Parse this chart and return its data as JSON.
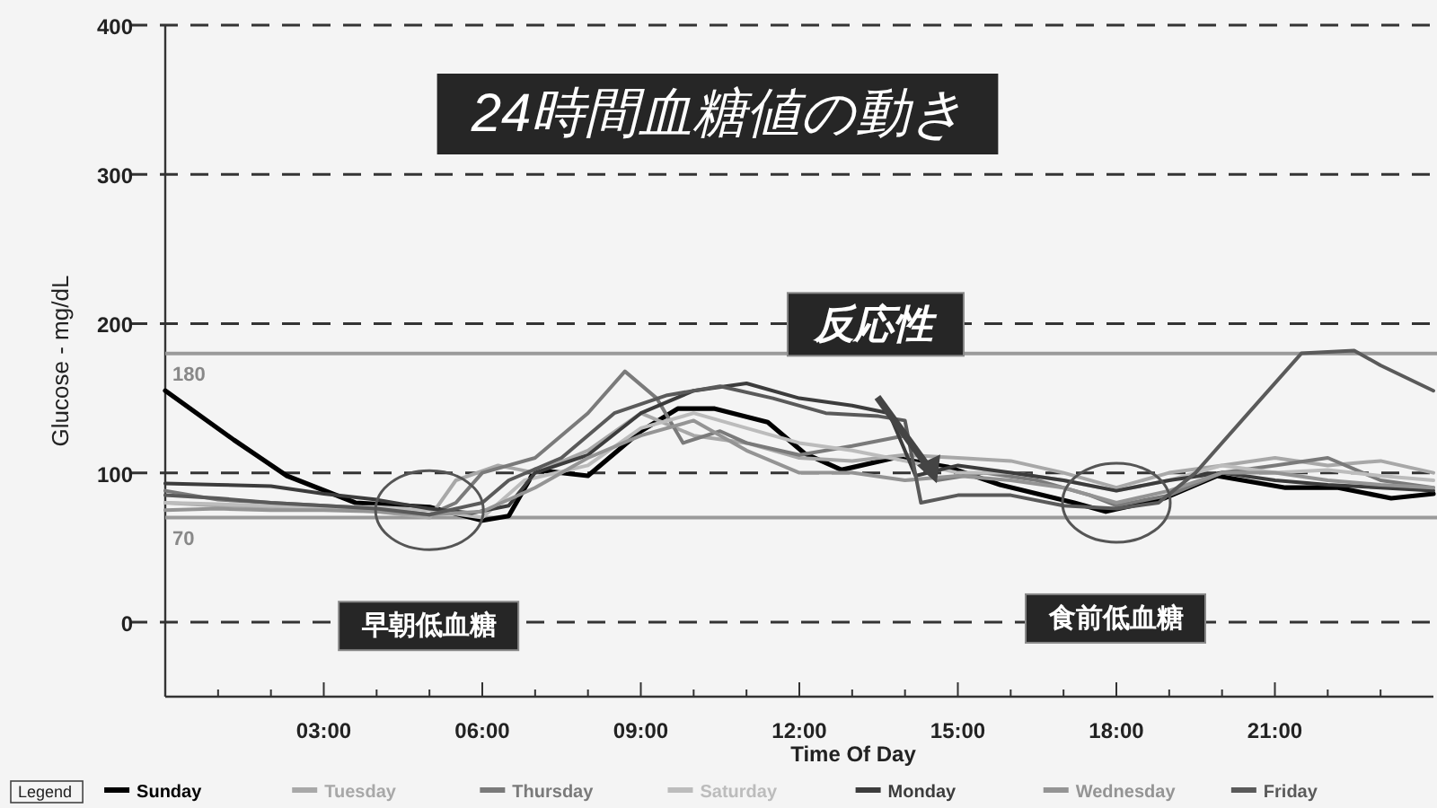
{
  "chart_data": {
    "type": "line",
    "title": "24時間血糖値の動き",
    "xlabel": "Time Of Day",
    "ylabel": "Glucose - mg/dL",
    "legend_title": "Legend",
    "legend": "bottom",
    "grid": "y",
    "marker": "none",
    "line_style": "solid",
    "xlim": [
      0,
      24
    ],
    "ylim": [
      -50,
      400
    ],
    "yticks": [
      0,
      100,
      200,
      300,
      400
    ],
    "xticks": [
      {
        "value": 1,
        "label": null
      },
      {
        "value": 2,
        "label": null
      },
      {
        "value": 3,
        "label": "03:00"
      },
      {
        "value": 4,
        "label": null
      },
      {
        "value": 5,
        "label": null
      },
      {
        "value": 6,
        "label": "06:00"
      },
      {
        "value": 7,
        "label": null
      },
      {
        "value": 8,
        "label": null
      },
      {
        "value": 9,
        "label": "09:00"
      },
      {
        "value": 10,
        "label": null
      },
      {
        "value": 11,
        "label": null
      },
      {
        "value": 12,
        "label": "12:00"
      },
      {
        "value": 13,
        "label": null
      },
      {
        "value": 14,
        "label": null
      },
      {
        "value": 15,
        "label": "15:00"
      },
      {
        "value": 16,
        "label": null
      },
      {
        "value": 17,
        "label": null
      },
      {
        "value": 18,
        "label": "18:00"
      },
      {
        "value": 19,
        "label": null
      },
      {
        "value": 20,
        "label": null
      },
      {
        "value": 21,
        "label": "21:00"
      },
      {
        "value": 22,
        "label": null
      },
      {
        "value": 23,
        "label": null
      }
    ],
    "ref_lines": [
      {
        "axis": "y",
        "value": 180,
        "label": "180",
        "color": "#9a9a9a"
      },
      {
        "axis": "y",
        "value": 70,
        "label": "70",
        "color": "#9a9a9a"
      }
    ],
    "annotations": [
      "早朝低血糖",
      "反応性",
      "食前低血糖"
    ],
    "series": [
      {
        "name": "Sunday",
        "color": "#000000",
        "x": [
          0,
          1.3,
          2.3,
          3.6,
          5,
          6,
          6.5,
          7,
          8,
          9,
          9.7,
          10.4,
          11.4,
          12.1,
          12.8,
          13.8,
          14.8,
          15.8,
          17.2,
          17.8,
          18.9,
          19.9,
          21.2,
          22.2,
          23.2,
          24
        ],
        "values": [
          155,
          122,
          98,
          80,
          77,
          68,
          71,
          102,
          98,
          128,
          143,
          143,
          134,
          113,
          102,
          110,
          104,
          92,
          80,
          74,
          83,
          98,
          90,
          90,
          83,
          86
        ]
      },
      {
        "name": "Tuesday",
        "color": "#a8a8a8",
        "x": [
          0,
          1,
          2,
          3,
          4,
          5,
          5.5,
          6.3,
          7,
          8,
          9,
          10,
          11,
          12,
          13,
          14,
          15,
          16,
          17,
          18,
          19,
          20,
          21,
          22,
          23,
          24
        ],
        "values": [
          80,
          78,
          77,
          76,
          74,
          70,
          95,
          105,
          100,
          115,
          140,
          125,
          120,
          110,
          108,
          112,
          110,
          108,
          100,
          90,
          100,
          105,
          110,
          105,
          108,
          100
        ]
      },
      {
        "name": "Thursday",
        "color": "#7a7a7a",
        "x": [
          0,
          1,
          2,
          3,
          4,
          5,
          5.5,
          6,
          7,
          8,
          8.7,
          9.3,
          9.8,
          10.5,
          11,
          12,
          13,
          14,
          14.6,
          15.5,
          16.5,
          17.5,
          18,
          19,
          20,
          21,
          22,
          23,
          24
        ],
        "values": [
          88,
          82,
          80,
          78,
          76,
          72,
          80,
          100,
          110,
          140,
          168,
          150,
          120,
          128,
          120,
          112,
          118,
          125,
          95,
          100,
          95,
          85,
          78,
          85,
          100,
          105,
          110,
          95,
          90
        ]
      },
      {
        "name": "Saturday",
        "color": "#bcbcbc",
        "x": [
          0,
          1,
          2,
          3,
          4,
          5,
          6,
          6.8,
          8,
          9,
          10,
          11,
          12,
          13,
          14,
          15,
          16,
          17,
          18,
          19,
          20,
          21,
          22,
          23,
          24
        ],
        "values": [
          80,
          79,
          78,
          77,
          77,
          75,
          70,
          95,
          105,
          130,
          140,
          130,
          120,
          115,
          108,
          100,
          100,
          95,
          88,
          95,
          105,
          100,
          102,
          98,
          95
        ]
      },
      {
        "name": "Monday",
        "color": "#3c3c3c",
        "x": [
          0,
          1,
          2,
          3,
          4,
          5,
          5.8,
          6.5,
          7,
          8,
          9,
          10,
          11,
          12,
          13,
          13.7,
          14.2,
          15,
          16,
          17,
          18,
          19,
          20,
          21,
          22,
          23,
          24
        ],
        "values": [
          93,
          92,
          91,
          86,
          82,
          76,
          73,
          78,
          100,
          112,
          140,
          155,
          160,
          150,
          145,
          140,
          98,
          105,
          100,
          95,
          88,
          95,
          100,
          95,
          92,
          90,
          88
        ]
      },
      {
        "name": "Wednesday",
        "color": "#949494",
        "x": [
          0,
          1,
          2,
          3,
          4,
          5,
          6,
          7,
          8,
          9,
          10,
          11,
          12,
          13,
          14,
          15,
          16,
          17,
          18,
          19,
          20,
          21,
          22,
          23,
          24
        ],
        "values": [
          75,
          76,
          75,
          75,
          74,
          72,
          74,
          90,
          110,
          125,
          135,
          115,
          100,
          100,
          95,
          98,
          95,
          90,
          80,
          88,
          100,
          100,
          95,
          92,
          90
        ]
      },
      {
        "name": "Friday",
        "color": "#5a5a5a",
        "x": [
          0,
          1,
          2,
          3,
          4,
          5,
          6,
          6.5,
          7.5,
          8.5,
          9.5,
          10.5,
          11.5,
          12.5,
          13.5,
          14,
          14.3,
          15,
          16,
          17,
          18,
          18.8,
          19.5,
          20.5,
          21.5,
          22.5,
          23,
          24
        ],
        "values": [
          85,
          83,
          80,
          78,
          76,
          72,
          80,
          95,
          110,
          140,
          152,
          158,
          150,
          140,
          138,
          135,
          80,
          85,
          85,
          78,
          76,
          80,
          100,
          140,
          180,
          182,
          172,
          155
        ]
      }
    ]
  }
}
